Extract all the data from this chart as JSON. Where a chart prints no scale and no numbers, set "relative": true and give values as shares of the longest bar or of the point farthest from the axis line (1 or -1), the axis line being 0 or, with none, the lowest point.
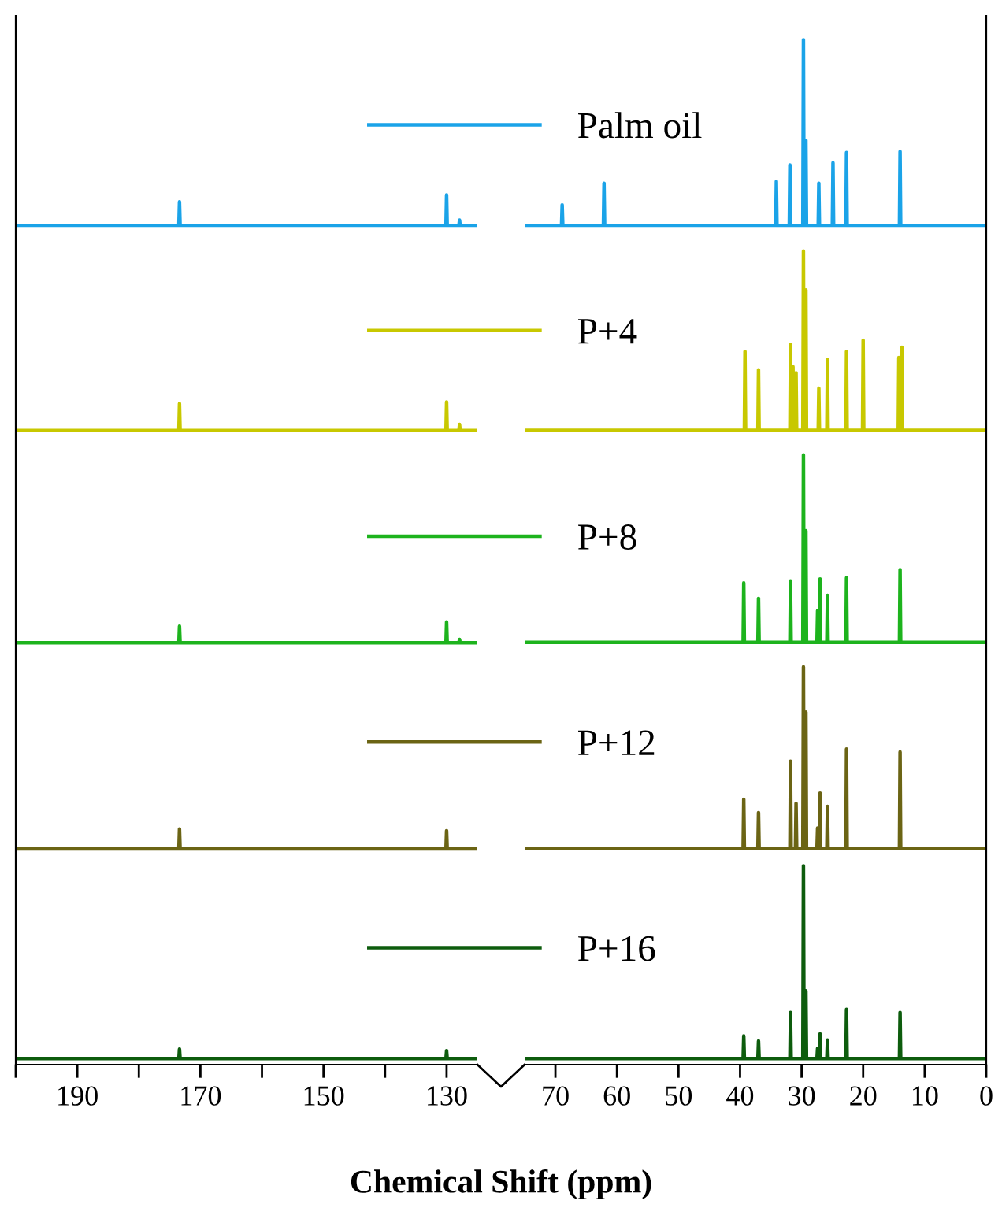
{
  "chart_data": [
    {
      "type": "line",
      "relative": true,
      "xlim": [
        200,
        125
      ],
      "xticks": [
        {
          "value": 200,
          "label": null
        },
        190,
        {
          "value": 180,
          "label": null
        },
        170,
        {
          "value": 160,
          "label": null
        },
        150,
        {
          "value": 140,
          "label": null
        },
        130
      ],
      "xlabel": "Chemical Shift (ppm)",
      "line_style": "solid",
      "series": [
        {
          "color": "#1aa3e8",
          "x": [
            200,
            173.5,
            173.4,
            173.3,
            130.1,
            130.0,
            129.9,
            128.0,
            127.9,
            127.8,
            125
          ],
          "values": [
            0.965,
            0.965,
            0.992,
            0.965,
            0.965,
            1,
            0.965,
            0.965,
            0.971,
            0.965,
            0.965
          ]
        },
        {
          "color": "#c8c800",
          "x": [
            200,
            173.5,
            173.4,
            173.3,
            130.1,
            130.0,
            129.9,
            128.0,
            127.9,
            127.8,
            125
          ],
          "values": [
            0.729,
            0.729,
            0.76,
            0.729,
            0.729,
            0.762,
            0.729,
            0.729,
            0.736,
            0.729,
            0.729
          ]
        },
        {
          "color": "#1db31d",
          "x": [
            200,
            173.5,
            173.4,
            173.3,
            130.1,
            130.0,
            129.9,
            128.0,
            127.9,
            127.8,
            125
          ],
          "values": [
            0.485,
            0.485,
            0.504,
            0.485,
            0.485,
            0.509,
            0.485,
            0.485,
            0.489,
            0.485,
            0.485
          ]
        },
        {
          "color": "#6b6414",
          "x": [
            200,
            173.5,
            173.4,
            173.3,
            130.1,
            130.0,
            129.9,
            125
          ],
          "values": [
            0.248,
            0.248,
            0.271,
            0.248,
            0.248,
            0.269,
            0.248,
            0.248
          ]
        },
        {
          "color": "#0d5c0d",
          "x": [
            200,
            173.5,
            173.4,
            173.3,
            130.1,
            130.0,
            129.9,
            125
          ],
          "values": [
            0.007,
            0.007,
            0.018,
            0.007,
            0.007,
            0.016,
            0.007,
            0.007
          ]
        }
      ]
    },
    {
      "type": "line",
      "relative": true,
      "xlim": [
        75,
        0
      ],
      "xticks": [
        70,
        60,
        50,
        40,
        30,
        20,
        10,
        0
      ],
      "legend": "left",
      "line_style": "solid",
      "series": [
        {
          "name": "Palm oil",
          "color": "#1aa3e8",
          "x": [
            75,
            69.0,
            68.9,
            68.8,
            62.2,
            62.1,
            62.0,
            34.2,
            34.1,
            34.0,
            32.0,
            31.9,
            31.8,
            29.8,
            29.7,
            29.6,
            29.4,
            29.3,
            29.2,
            27.3,
            27.2,
            27.1,
            25.0,
            24.9,
            24.8,
            22.8,
            22.7,
            22.6,
            14.1,
            14.0,
            13.9,
            0
          ],
          "values": [
            0.819,
            0.819,
            0.839,
            0.819,
            0.819,
            0.86,
            0.819,
            0.819,
            0.862,
            0.819,
            0.819,
            0.878,
            0.819,
            0.819,
            1,
            0.819,
            0.819,
            0.902,
            0.819,
            0.819,
            0.86,
            0.819,
            0.819,
            0.88,
            0.819,
            0.819,
            0.89,
            0.819,
            0.819,
            0.891,
            0.819,
            0.819
          ]
        },
        {
          "name": "P+4",
          "color": "#c8c800",
          "x": [
            75,
            39.3,
            39.2,
            39.1,
            37.1,
            37.0,
            36.9,
            31.9,
            31.8,
            31.7,
            31.5,
            31.4,
            31.3,
            31.0,
            30.9,
            30.8,
            29.8,
            29.7,
            29.6,
            29.4,
            29.3,
            29.2,
            27.3,
            27.2,
            27.1,
            25.9,
            25.8,
            25.7,
            22.8,
            22.7,
            22.6,
            20.1,
            20.0,
            19.9,
            14.3,
            14.2,
            14.1,
            13.8,
            13.7,
            13.6,
            0
          ],
          "values": [
            0.619,
            0.619,
            0.696,
            0.619,
            0.619,
            0.678,
            0.619,
            0.619,
            0.703,
            0.619,
            0.619,
            0.681,
            0.619,
            0.619,
            0.675,
            0.619,
            0.619,
            0.794,
            0.619,
            0.619,
            0.756,
            0.619,
            0.619,
            0.66,
            0.619,
            0.619,
            0.688,
            0.619,
            0.619,
            0.696,
            0.619,
            0.619,
            0.707,
            0.619,
            0.619,
            0.69,
            0.619,
            0.619,
            0.7,
            0.619,
            0.619
          ]
        },
        {
          "name": "P+8",
          "color": "#1db31d",
          "x": [
            75,
            39.5,
            39.4,
            39.3,
            37.1,
            37.0,
            36.9,
            31.9,
            31.8,
            31.7,
            29.8,
            29.7,
            29.6,
            29.4,
            29.3,
            29.2,
            27.5,
            27.4,
            27.3,
            27.1,
            27.0,
            26.9,
            25.9,
            25.8,
            25.7,
            22.8,
            22.7,
            22.6,
            14.1,
            14.0,
            13.9,
            0
          ],
          "values": [
            0.412,
            0.412,
            0.47,
            0.412,
            0.412,
            0.455,
            0.412,
            0.412,
            0.472,
            0.412,
            0.412,
            0.595,
            0.412,
            0.412,
            0.521,
            0.412,
            0.412,
            0.443,
            0.412,
            0.412,
            0.474,
            0.412,
            0.412,
            0.458,
            0.412,
            0.412,
            0.475,
            0.412,
            0.412,
            0.483,
            0.412,
            0.412
          ]
        },
        {
          "name": "P+12",
          "color": "#6b6414",
          "x": [
            75,
            39.5,
            39.4,
            39.3,
            37.1,
            37.0,
            36.9,
            31.9,
            31.8,
            31.7,
            31.0,
            30.9,
            30.8,
            29.8,
            29.7,
            29.6,
            29.4,
            29.3,
            29.2,
            27.5,
            27.4,
            27.3,
            27.1,
            27.0,
            26.9,
            25.9,
            25.8,
            25.7,
            22.8,
            22.7,
            22.6,
            14.1,
            14.0,
            13.9,
            0
          ],
          "values": [
            0.211,
            0.211,
            0.259,
            0.211,
            0.211,
            0.246,
            0.211,
            0.211,
            0.296,
            0.211,
            0.211,
            0.255,
            0.211,
            0.211,
            0.388,
            0.211,
            0.211,
            0.344,
            0.211,
            0.211,
            0.231,
            0.211,
            0.211,
            0.265,
            0.211,
            0.211,
            0.252,
            0.211,
            0.211,
            0.308,
            0.211,
            0.211,
            0.305,
            0.211,
            0.211
          ]
        },
        {
          "name": "P+16",
          "color": "#0d5c0d",
          "x": [
            75,
            39.5,
            39.4,
            39.3,
            37.1,
            37.0,
            36.9,
            31.9,
            31.8,
            31.7,
            29.8,
            29.7,
            29.6,
            29.4,
            29.3,
            29.2,
            27.5,
            27.4,
            27.3,
            27.1,
            27.0,
            26.9,
            25.9,
            25.8,
            25.7,
            22.8,
            22.7,
            22.6,
            14.1,
            14.0,
            13.9,
            0
          ],
          "values": [
            0.006,
            0.006,
            0.028,
            0.006,
            0.006,
            0.023,
            0.006,
            0.006,
            0.051,
            0.006,
            0.006,
            0.194,
            0.006,
            0.006,
            0.072,
            0.006,
            0.006,
            0.016,
            0.006,
            0.006,
            0.03,
            0.006,
            0.006,
            0.024,
            0.006,
            0.006,
            0.054,
            0.006,
            0.006,
            0.051,
            0.006,
            0.006
          ]
        }
      ]
    }
  ]
}
